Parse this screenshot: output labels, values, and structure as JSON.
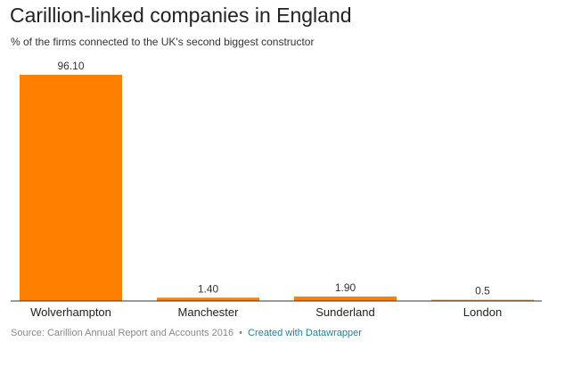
{
  "chart_data": {
    "type": "bar",
    "title": "Carillion-linked companies in England",
    "subtitle": "% of the firms connected to the UK's second biggest constructor",
    "categories": [
      "Wolverhampton",
      "Manchester",
      "Sunderland",
      "London"
    ],
    "values": [
      96.1,
      1.4,
      1.9,
      0.5
    ],
    "value_labels": [
      "96.10",
      "1.40",
      "1.90",
      "0.5"
    ],
    "ylim": [
      0,
      96.1
    ],
    "bar_color": "#ff7f00",
    "grid": false
  },
  "footer": {
    "source": "Source: Carillion Annual Report and Accounts 2016",
    "separator": "•",
    "credit": "Created with Datawrapper"
  }
}
